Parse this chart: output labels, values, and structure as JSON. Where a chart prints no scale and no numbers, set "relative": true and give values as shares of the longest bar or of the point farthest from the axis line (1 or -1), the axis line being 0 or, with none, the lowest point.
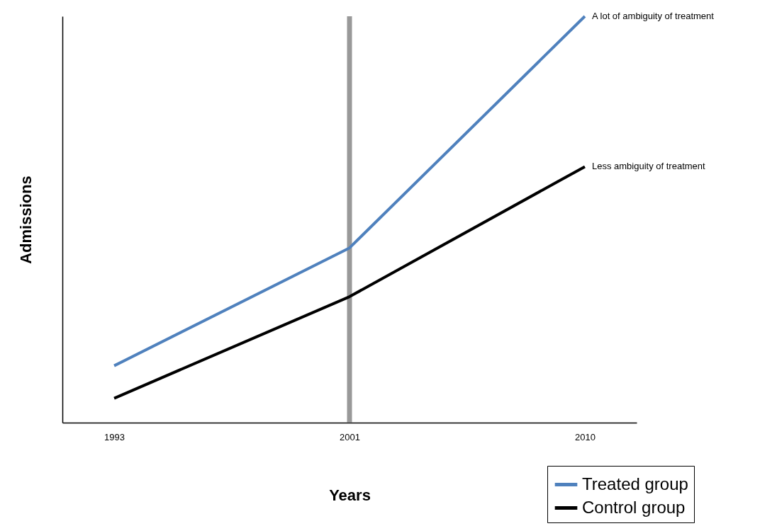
{
  "chart_data": {
    "type": "line",
    "xlabel": "Years",
    "ylabel": "Admissions",
    "relative": true,
    "categories": [
      "1993",
      "2001",
      "2010"
    ],
    "series": [
      {
        "name": "Treated group",
        "color": "#4f81bd",
        "values": [
          0.14,
          0.43,
          1
        ]
      },
      {
        "name": "Control group",
        "color": "#000000",
        "values": [
          0.06,
          0.31,
          0.63
        ]
      }
    ],
    "ref_lines": [
      {
        "axis": "x",
        "value": "2001",
        "color": "#999999"
      }
    ],
    "annotations": [
      {
        "text": "A lot of ambiguity of treatment",
        "x": "2010",
        "y": 1
      },
      {
        "text": "Less ambiguity of treatment",
        "x": "2010",
        "y": 0.63
      }
    ],
    "legend": "bottom right"
  }
}
